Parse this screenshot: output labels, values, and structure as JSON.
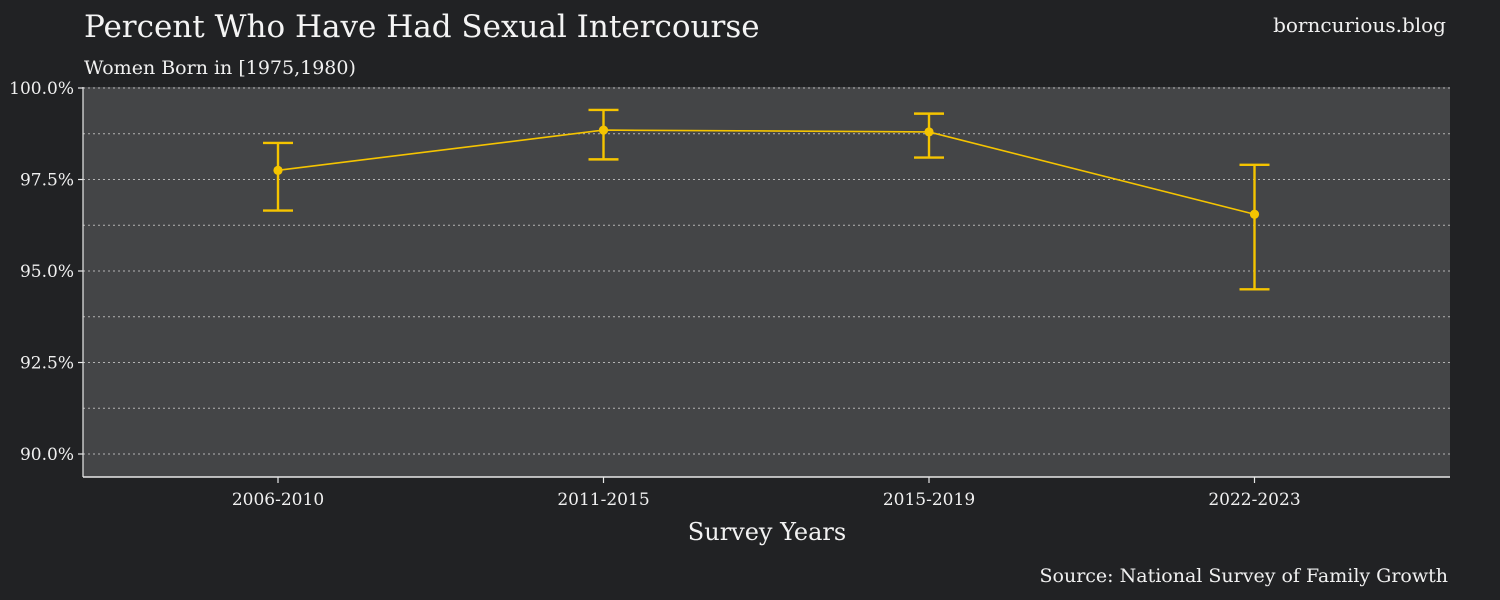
{
  "chart_data": {
    "type": "line",
    "title": "Percent Who Have Had Sexual Intercourse",
    "subtitle": "Women Born in [1975,1980)",
    "watermark": "borncurious.blog",
    "source": "Source: National Survey of Family Growth",
    "xlabel": "Survey Years",
    "ylabel": "",
    "categories": [
      "2006-2010",
      "2011-2015",
      "2015-2019",
      "2022-2023"
    ],
    "series": [
      {
        "values": [
          97.75,
          98.85,
          98.8,
          96.55
        ],
        "lower": [
          96.65,
          98.05,
          98.1,
          94.5
        ],
        "upper": [
          98.5,
          99.4,
          99.3,
          97.9
        ]
      }
    ],
    "ylim": [
      89.4,
      100
    ],
    "yticks": [
      90,
      92.5,
      95,
      97.5,
      100
    ],
    "ytick_labels": [
      "90.0%",
      "92.5%",
      "95.0%",
      "97.5%",
      "100.0%"
    ],
    "minor_gridlines": [
      91.25,
      93.75,
      96.25,
      98.75
    ],
    "grid": true,
    "colors": {
      "background": "#212224",
      "plot_background": "#444547",
      "series": "#f5c400",
      "grid": "#c8c8c8",
      "text": "#f0f0f0"
    }
  }
}
